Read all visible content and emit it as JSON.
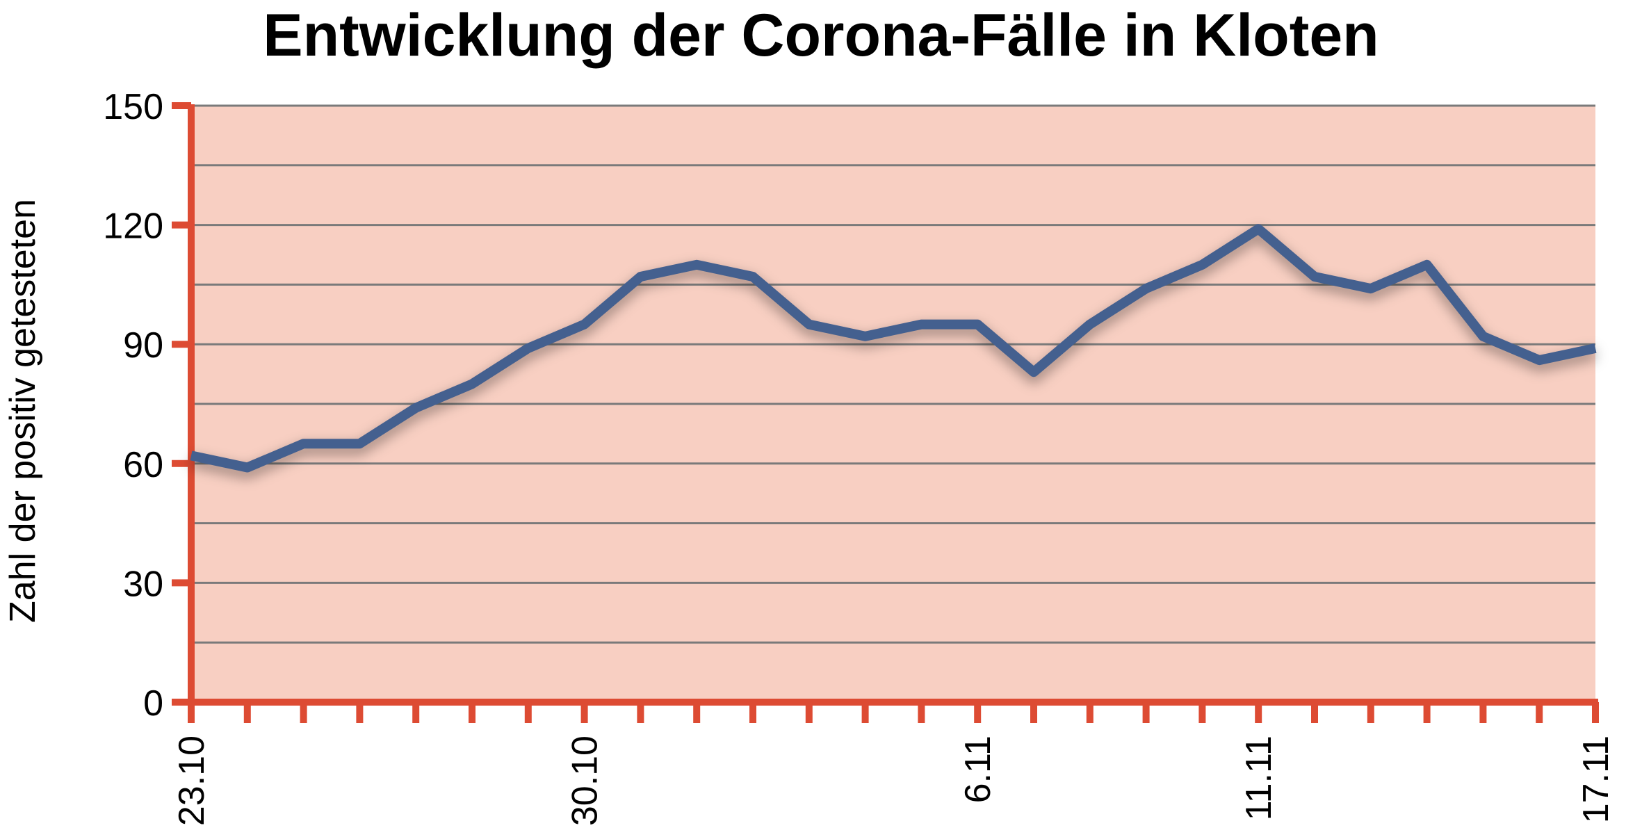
{
  "chart_data": {
    "type": "line",
    "title": "Entwicklung der Corona-Fälle in Kloten",
    "xlabel": "",
    "ylabel": "Zahl der positiv getesteten",
    "ylim": [
      0,
      150
    ],
    "yticks": [
      0,
      30,
      60,
      90,
      120,
      150
    ],
    "grid": true,
    "x_tick_labels": [
      "23.10",
      "30.10",
      "6.11",
      "11.11",
      "17.11"
    ],
    "x_tick_label_positions": [
      0,
      7,
      14,
      19,
      25
    ],
    "series": [
      {
        "values": [
          62,
          59,
          65,
          65,
          74,
          80,
          89,
          95,
          107,
          110,
          107,
          95,
          92,
          95,
          95,
          83,
          95,
          104,
          110,
          119,
          107,
          104,
          110,
          92,
          86,
          89
        ],
        "color": "#44608f"
      }
    ],
    "colors": {
      "plot_background": "#f8cfc2",
      "axis": "#dd4b33",
      "grid": "#7a7a7a",
      "line": "#44608f"
    }
  }
}
